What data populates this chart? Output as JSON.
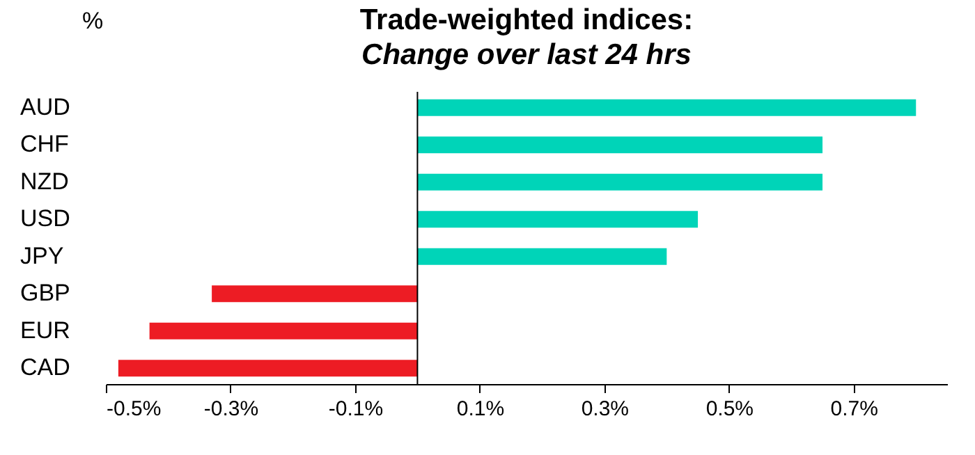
{
  "chart_data": {
    "type": "bar",
    "orientation": "horizontal",
    "title": "Trade-weighted indices:",
    "subtitle": "Change over last 24 hrs",
    "ylabel": "%",
    "categories": [
      "AUD",
      "CHF",
      "NZD",
      "USD",
      "JPY",
      "GBP",
      "EUR",
      "CAD"
    ],
    "values": [
      0.8,
      0.65,
      0.65,
      0.45,
      0.4,
      -0.33,
      -0.43,
      -0.48
    ],
    "colors": [
      "#00d4b8",
      "#00d4b8",
      "#00d4b8",
      "#00d4b8",
      "#00d4b8",
      "#ed1c24",
      "#ed1c24",
      "#ed1c24"
    ],
    "xlim": [
      -0.5,
      0.85
    ],
    "xticks": [
      {
        "value": -0.5,
        "label": "-0.5%"
      },
      {
        "value": -0.3,
        "label": "-0.3%"
      },
      {
        "value": -0.1,
        "label": "-0.1%"
      },
      {
        "value": 0.1,
        "label": "0.1%"
      },
      {
        "value": 0.3,
        "label": "0.3%"
      },
      {
        "value": 0.5,
        "label": "0.5%"
      },
      {
        "value": 0.7,
        "label": "0.7%"
      }
    ]
  }
}
